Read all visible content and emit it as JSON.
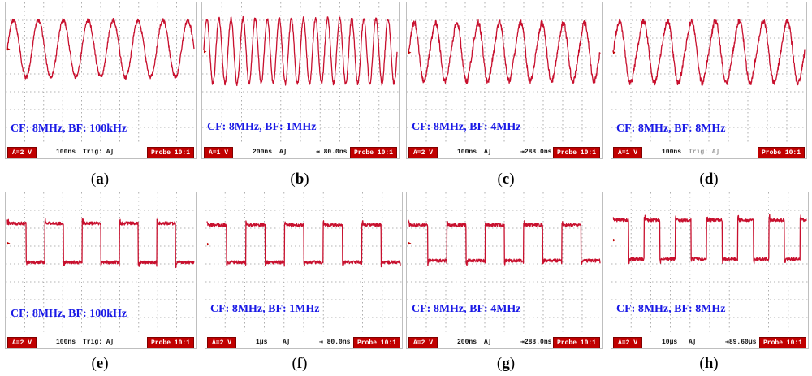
{
  "colors": {
    "trace": "#c8102e",
    "label_text": "#1a1ae6",
    "status_box": "#c00000",
    "grid": "#9a9a9a"
  },
  "panels": [
    {
      "id": "a",
      "caption": "a",
      "label": "CF: 8MHz, BF: 100kHz",
      "channel": "A=2 V",
      "timebase": "100ns",
      "trigger": "Trig: A∫",
      "offset": "",
      "probe": "Probe 10:1",
      "trigger_grey": false
    },
    {
      "id": "b",
      "caption": "b",
      "label": "CF: 8MHz, BF: 1MHz",
      "channel": "A=1 V",
      "timebase": "200ns",
      "trigger": "A∫",
      "offset": "⇥ 80.0ns",
      "probe": "Probe 10:1",
      "trigger_grey": false
    },
    {
      "id": "c",
      "caption": "c",
      "label": "CF: 8MHz, BF: 4MHz",
      "channel": "A=2 V",
      "timebase": "100ns",
      "trigger": "A∫",
      "offset": "⇥288.0ns",
      "probe": "Probe 10:1",
      "trigger_grey": false
    },
    {
      "id": "d",
      "caption": "d",
      "label": "CF: 8MHz, BF: 8MHz",
      "channel": "A=1 V",
      "timebase": "100ns",
      "trigger": "Trig: A∫",
      "offset": "",
      "probe": "Probe 10:1",
      "trigger_grey": true
    },
    {
      "id": "e",
      "caption": "e",
      "label": "CF: 8MHz, BF: 100kHz",
      "channel": "A=2 V",
      "timebase": "100ns",
      "trigger": "Trig: A∫",
      "offset": "",
      "probe": "Probe 10:1",
      "trigger_grey": false
    },
    {
      "id": "f",
      "caption": "f",
      "label": "CF: 8MHz, BF: 1MHz",
      "channel": "A=2 V",
      "timebase": "1μs",
      "trigger": "A∫",
      "offset": "⇥ 80.0ns",
      "probe": "Probe 10:1",
      "trigger_grey": false
    },
    {
      "id": "g",
      "caption": "g",
      "label": "CF: 8MHz, BF: 4MHz",
      "channel": "A=2 V",
      "timebase": "200ns",
      "trigger": "A∫",
      "offset": "⇥288.0ns",
      "probe": "Probe 10:1",
      "trigger_grey": false
    },
    {
      "id": "h",
      "caption": "h",
      "label": "CF: 8MHz, BF: 8MHz",
      "channel": "A=2 V",
      "timebase": "10μs",
      "trigger": "A∫",
      "offset": "⇥89.60μs",
      "probe": "Probe 10:1",
      "trigger_grey": false
    }
  ]
}
